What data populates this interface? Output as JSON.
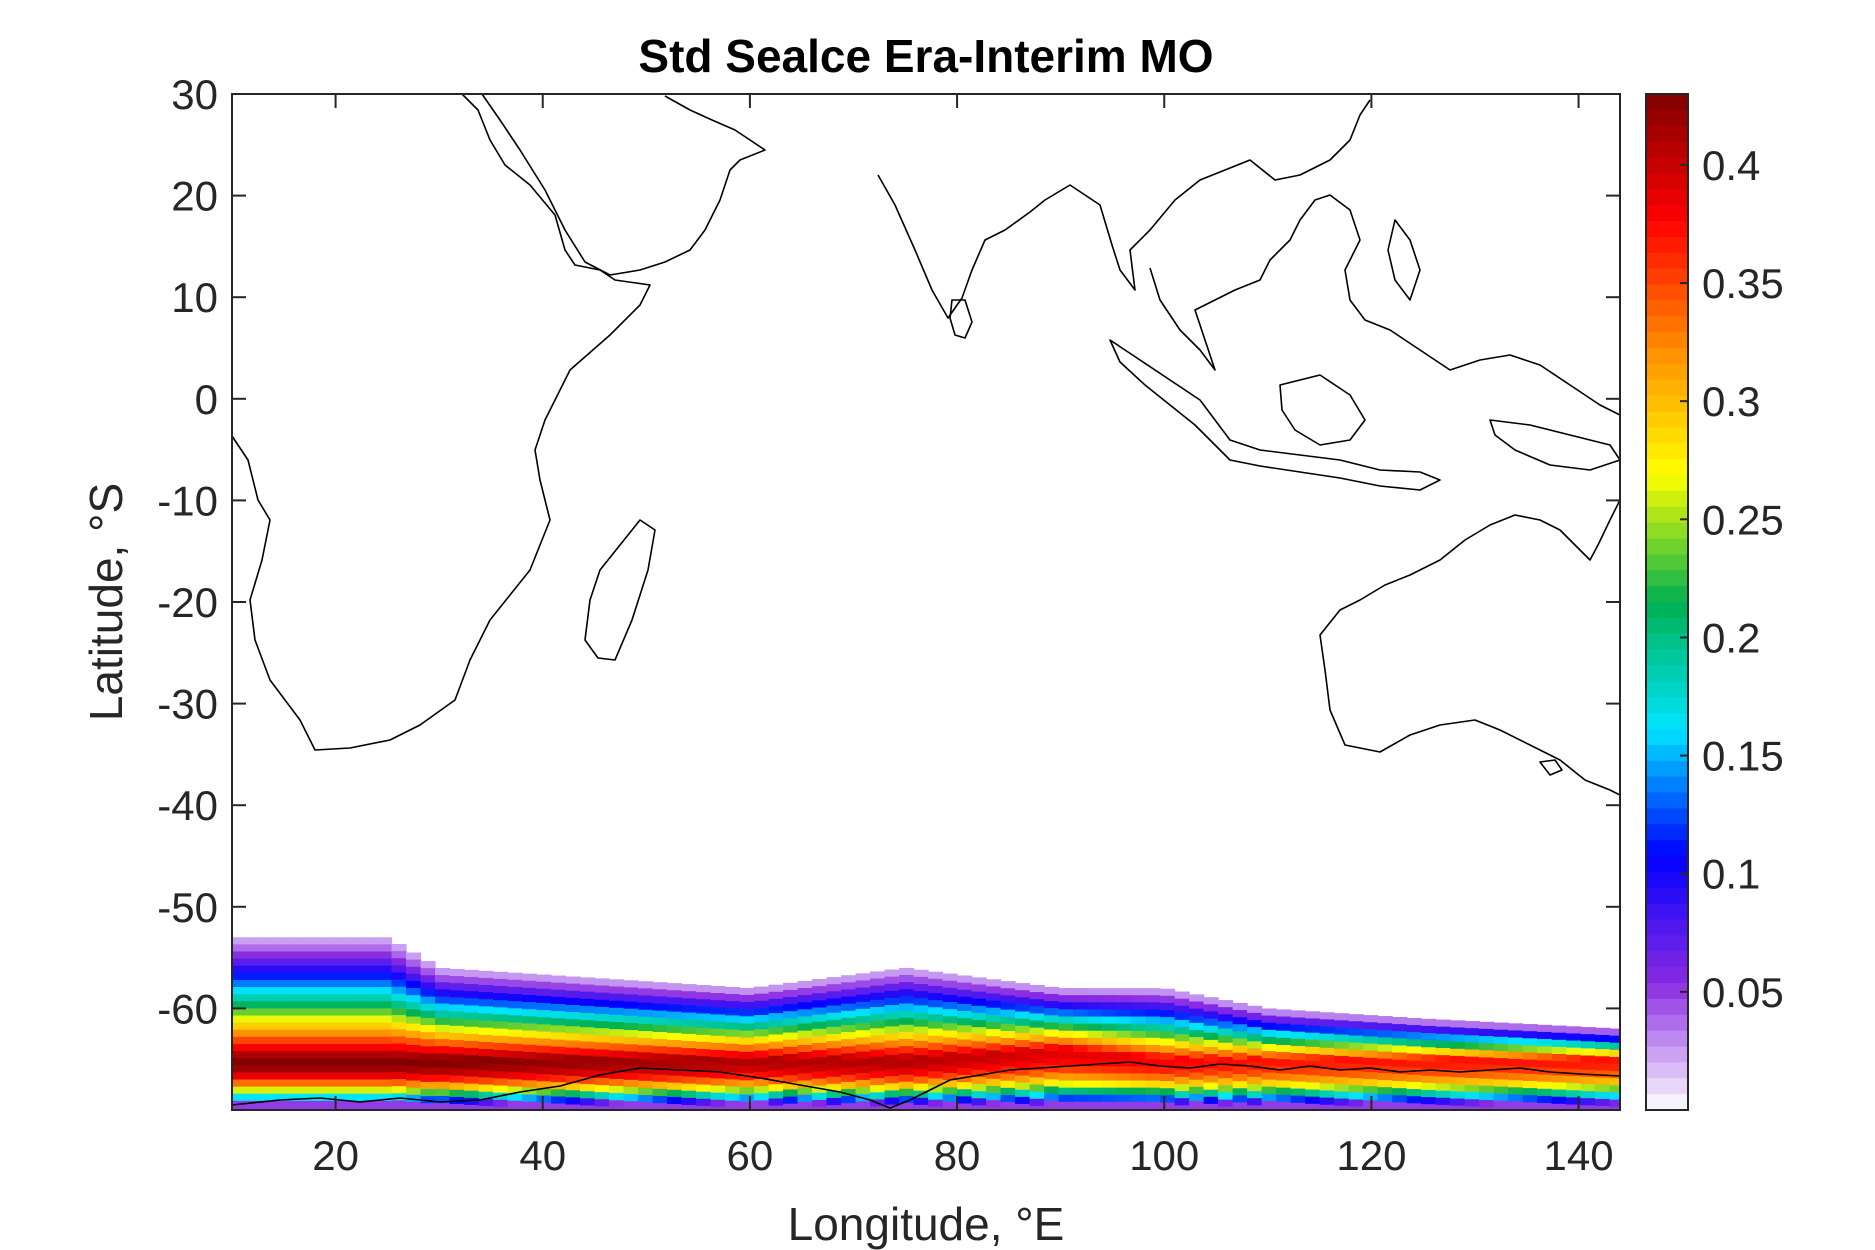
{
  "chart_data": {
    "type": "heatmap",
    "title": "Std Sealce Era-Interim MO",
    "xlabel": "Longitude, °E",
    "ylabel": "Latitude, °S",
    "xlim": [
      10,
      144
    ],
    "ylim": [
      -70,
      30
    ],
    "xticks": [
      20,
      40,
      60,
      80,
      100,
      120,
      140
    ],
    "yticks": [
      30,
      20,
      10,
      0,
      -10,
      -20,
      -30,
      -40,
      -50,
      -60
    ],
    "colorbar": {
      "range": [
        0,
        0.43
      ],
      "ticks": [
        0.4,
        0.35,
        0.3,
        0.25,
        0.2,
        0.15,
        0.1,
        0.05
      ],
      "colormap": "spectral: white-purple-blue-cyan-green-yellow-orange-red-darkred",
      "colors": [
        "#ffffff",
        "#8a2be2",
        "#0000ff",
        "#00e5ff",
        "#00b050",
        "#ffff00",
        "#ff8c00",
        "#ff0000",
        "#800000"
      ]
    },
    "features": "coastlines of Africa, Arabia, India, Southeast Asia and Australia; sea-ice std band between ~-54° and -70° latitude",
    "band_profile": [
      {
        "lon": 10,
        "north_edge": -53,
        "max_lat": -65,
        "max_value": 0.43
      },
      {
        "lon": 25,
        "north_edge": -53,
        "max_lat": -65,
        "max_value": 0.43
      },
      {
        "lon": 30,
        "north_edge": -56,
        "max_lat": -65,
        "max_value": 0.43
      },
      {
        "lon": 45,
        "north_edge": -57,
        "max_lat": -65,
        "max_value": 0.42
      },
      {
        "lon": 60,
        "north_edge": -58,
        "max_lat": -65,
        "max_value": 0.41
      },
      {
        "lon": 75,
        "north_edge": -56,
        "max_lat": -65,
        "max_value": 0.41
      },
      {
        "lon": 90,
        "north_edge": -58,
        "max_lat": -64,
        "max_value": 0.39
      },
      {
        "lon": 100,
        "north_edge": -58,
        "max_lat": -65,
        "max_value": 0.38
      },
      {
        "lon": 110,
        "north_edge": -60,
        "max_lat": -65,
        "max_value": 0.37
      },
      {
        "lon": 125,
        "north_edge": -61,
        "max_lat": -65,
        "max_value": 0.37
      },
      {
        "lon": 144,
        "north_edge": -62,
        "max_lat": -65,
        "max_value": 0.37
      }
    ]
  }
}
